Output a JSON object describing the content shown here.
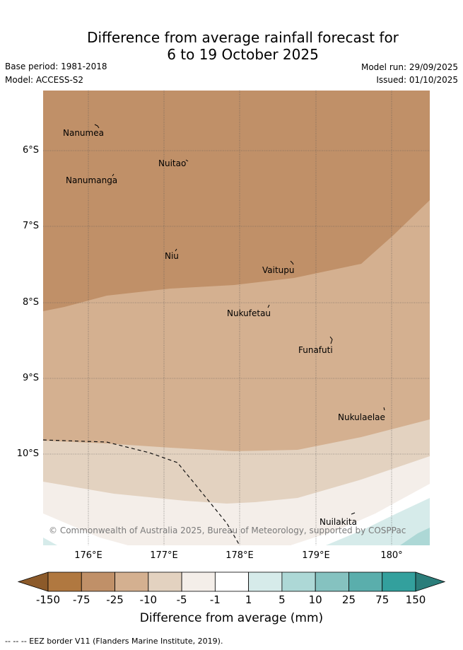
{
  "title_line1": "Difference from average rainfall forecast for",
  "title_line2": "6 to 19 October 2025",
  "base_period": "Base period: 1981-2018",
  "model": "Model: ACCESS-S2",
  "model_run": "Model run: 29/09/2025",
  "issued": "Issued: 01/10/2025",
  "copyright": "© Commonwealth of Australia 2025, Bureau of Meteorology, supported by COSPPac",
  "lat_ticks": [
    "6°S",
    "7°S",
    "8°S",
    "9°S",
    "10°S"
  ],
  "lon_ticks": [
    "176°E",
    "177°E",
    "178°E",
    "179°E",
    "180°"
  ],
  "islands": {
    "nanumea": "Nanumea",
    "nuitao": "Nuitao",
    "nanumanga": "Nanumanga",
    "niu": "Niu",
    "vaitupu": "Vaitupu",
    "nukufetau": "Nukufetau",
    "funafuti": "Funafuti",
    "nukulaelae": "Nukulaelae",
    "nuilakita": "Nuilakita"
  },
  "legend": {
    "labels": [
      "-150",
      "-75",
      "-25",
      "-10",
      "-5",
      "-1",
      "1",
      "5",
      "10",
      "25",
      "75",
      "150"
    ],
    "colors": [
      "#8c5a2a",
      "#b07840",
      "#c09068",
      "#d4b090",
      "#e3d2c0",
      "#f4eee9",
      "#ffffff",
      "#d6ebea",
      "#add8d6",
      "#85c2c0",
      "#5aaeac",
      "#33a09d",
      "#2b7d7a"
    ],
    "axis_title": "Difference from average (mm)"
  },
  "eez_note": "-- -- -- EEZ border V11 (Flanders Marine Institute, 2019)."
}
